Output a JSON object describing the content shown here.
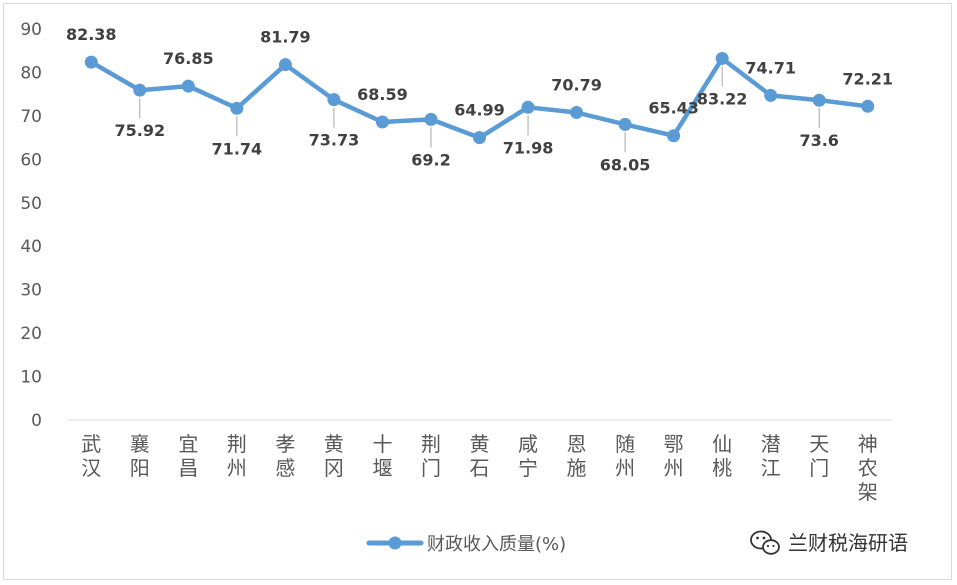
{
  "chart_data": {
    "type": "line",
    "categories": [
      "武汉",
      "襄阳",
      "宜昌",
      "荆州",
      "孝感",
      "黄冈",
      "十堰",
      "荆门",
      "黄石",
      "咸宁",
      "恩施",
      "随州",
      "鄂州",
      "仙桃",
      "潜江",
      "天门",
      "神农架"
    ],
    "series": [
      {
        "name": "财政收入质量(%)",
        "values": [
          82.38,
          75.92,
          76.85,
          71.74,
          81.79,
          73.73,
          68.59,
          69.2,
          64.99,
          71.98,
          70.79,
          68.05,
          65.43,
          83.22,
          74.71,
          73.6,
          72.21
        ],
        "labels": [
          "82.38",
          "75.92",
          "76.85",
          "71.74",
          "81.79",
          "73.73",
          "68.59",
          "69.2",
          "64.99",
          "71.98",
          "70.79",
          "68.05",
          "65.43",
          "83.22",
          "74.71",
          "73.6",
          "72.21"
        ],
        "color": "#5b9bd5"
      }
    ],
    "ylim": [
      0,
      90
    ],
    "yticks": [
      "0",
      "10",
      "20",
      "30",
      "40",
      "50",
      "60",
      "70",
      "80",
      "90"
    ],
    "grid": false,
    "legend_position": "bottom"
  },
  "watermark": {
    "text": "兰财税海研语",
    "icon": "wechat-icon"
  },
  "colors": {
    "line": "#5b9bd5",
    "axis": "#d9d9d9",
    "leader": "#a6a6a6"
  }
}
